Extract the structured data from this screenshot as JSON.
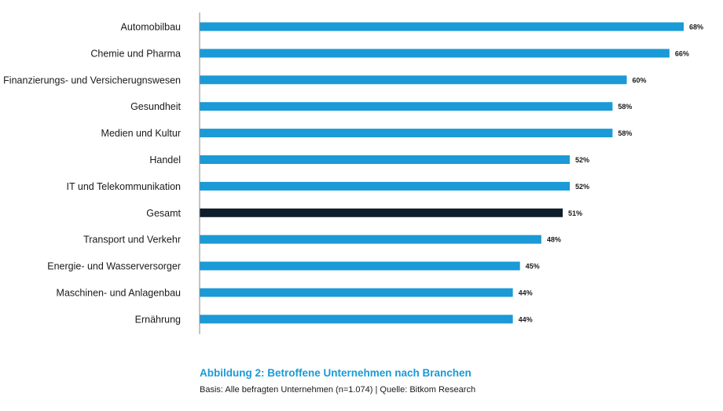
{
  "chart_data": {
    "type": "bar",
    "orientation": "horizontal",
    "title": "Abbildung 2: Betroffene Unternehmen nach Branchen",
    "subtitle": "Basis: Alle befragten Unternehmen (n=1.074) | Quelle: Bitkom Research",
    "xlabel": "",
    "ylabel": "",
    "xlim": [
      0,
      68
    ],
    "grid": false,
    "legend": "none",
    "unit": "%",
    "categories": [
      "Automobilbau",
      "Chemie und Pharma",
      "Finanzierungs- und Versicherugnswesen",
      "Gesundheit",
      "Medien und Kultur",
      "Handel",
      "IT und Telekommunikation",
      "Gesamt",
      "Transport und Verkehr",
      "Energie- und Wasserversorger",
      "Maschinen- und Anlagenbau",
      "Ernährung"
    ],
    "values": [
      68,
      66,
      60,
      58,
      58,
      52,
      52,
      51,
      48,
      45,
      44,
      44
    ],
    "value_labels": [
      "68%",
      "66%",
      "60%",
      "58%",
      "58%",
      "52%",
      "52%",
      "51%",
      "48%",
      "45%",
      "44%",
      "44%"
    ],
    "highlight_category": "Gesamt",
    "colors": {
      "bar": "#1a9ad6",
      "highlight": "#0e1e2b",
      "axis": "#888888"
    }
  }
}
